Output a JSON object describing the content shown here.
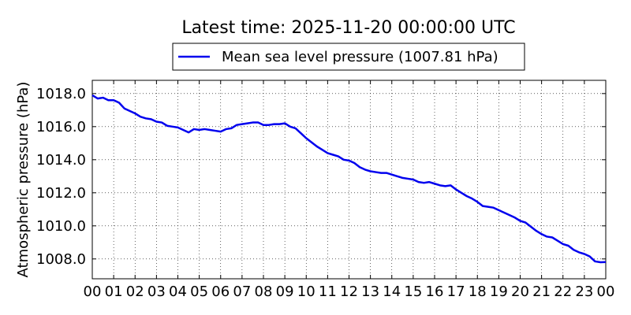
{
  "chart_data": {
    "type": "line",
    "title": "Latest time: 2025-11-20 00:00:00 UTC",
    "xlabel": "",
    "ylabel": "Atmospheric pressure (hPa)",
    "x_tick_labels": [
      "00",
      "01",
      "02",
      "03",
      "04",
      "05",
      "06",
      "07",
      "08",
      "09",
      "10",
      "11",
      "12",
      "13",
      "14",
      "15",
      "16",
      "17",
      "18",
      "19",
      "20",
      "21",
      "22",
      "23",
      "00"
    ],
    "y_ticks": [
      1008.0,
      1010.0,
      1012.0,
      1014.0,
      1016.0,
      1018.0
    ],
    "y_tick_labels": [
      "1008.0",
      "1010.0",
      "1012.0",
      "1014.0",
      "1016.0",
      "1018.0"
    ],
    "xlim": [
      0,
      24
    ],
    "ylim": [
      1006.8,
      1018.8
    ],
    "grid": true,
    "legend_position": "top-center",
    "series": [
      {
        "name": "Mean sea level pressure (1007.81 hPa)",
        "color": "#0000ee",
        "x": [
          0,
          0.25,
          0.5,
          0.75,
          1.0,
          1.25,
          1.5,
          1.75,
          2.0,
          2.25,
          2.5,
          2.75,
          3.0,
          3.25,
          3.5,
          3.75,
          4.0,
          4.25,
          4.5,
          4.75,
          5.0,
          5.25,
          5.5,
          5.75,
          6.0,
          6.25,
          6.5,
          6.75,
          7.0,
          7.25,
          7.5,
          7.75,
          8.0,
          8.25,
          8.5,
          8.75,
          9.0,
          9.25,
          9.5,
          9.75,
          10.0,
          10.25,
          10.5,
          10.75,
          11.0,
          11.25,
          11.5,
          11.75,
          12.0,
          12.25,
          12.5,
          12.75,
          13.0,
          13.25,
          13.5,
          13.75,
          14.0,
          14.25,
          14.5,
          14.75,
          15.0,
          15.25,
          15.5,
          15.75,
          16.0,
          16.25,
          16.5,
          16.75,
          17.0,
          17.25,
          17.5,
          17.75,
          18.0,
          18.25,
          18.5,
          18.75,
          19.0,
          19.25,
          19.5,
          19.75,
          20.0,
          20.25,
          20.5,
          20.75,
          21.0,
          21.25,
          21.5,
          21.75,
          22.0,
          22.25,
          22.5,
          22.75,
          23.0,
          23.25,
          23.5,
          23.75,
          24.0
        ],
        "values": [
          1017.9,
          1017.7,
          1017.75,
          1017.6,
          1017.6,
          1017.45,
          1017.1,
          1016.95,
          1016.8,
          1016.6,
          1016.5,
          1016.45,
          1016.3,
          1016.25,
          1016.05,
          1016.0,
          1015.95,
          1015.8,
          1015.65,
          1015.85,
          1015.8,
          1015.85,
          1015.8,
          1015.75,
          1015.7,
          1015.85,
          1015.9,
          1016.1,
          1016.15,
          1016.2,
          1016.25,
          1016.25,
          1016.1,
          1016.1,
          1016.15,
          1016.15,
          1016.2,
          1016.0,
          1015.9,
          1015.6,
          1015.3,
          1015.05,
          1014.8,
          1014.6,
          1014.4,
          1014.3,
          1014.2,
          1014.0,
          1013.95,
          1013.8,
          1013.55,
          1013.4,
          1013.3,
          1013.25,
          1013.2,
          1013.2,
          1013.1,
          1013.0,
          1012.9,
          1012.85,
          1012.8,
          1012.65,
          1012.6,
          1012.65,
          1012.55,
          1012.45,
          1012.4,
          1012.45,
          1012.2,
          1012.0,
          1011.8,
          1011.65,
          1011.45,
          1011.2,
          1011.15,
          1011.1,
          1010.95,
          1010.8,
          1010.65,
          1010.5,
          1010.3,
          1010.2,
          1009.95,
          1009.7,
          1009.5,
          1009.35,
          1009.3,
          1009.1,
          1008.9,
          1008.8,
          1008.55,
          1008.4,
          1008.3,
          1008.15,
          1007.85,
          1007.8,
          1007.81
        ]
      }
    ]
  }
}
